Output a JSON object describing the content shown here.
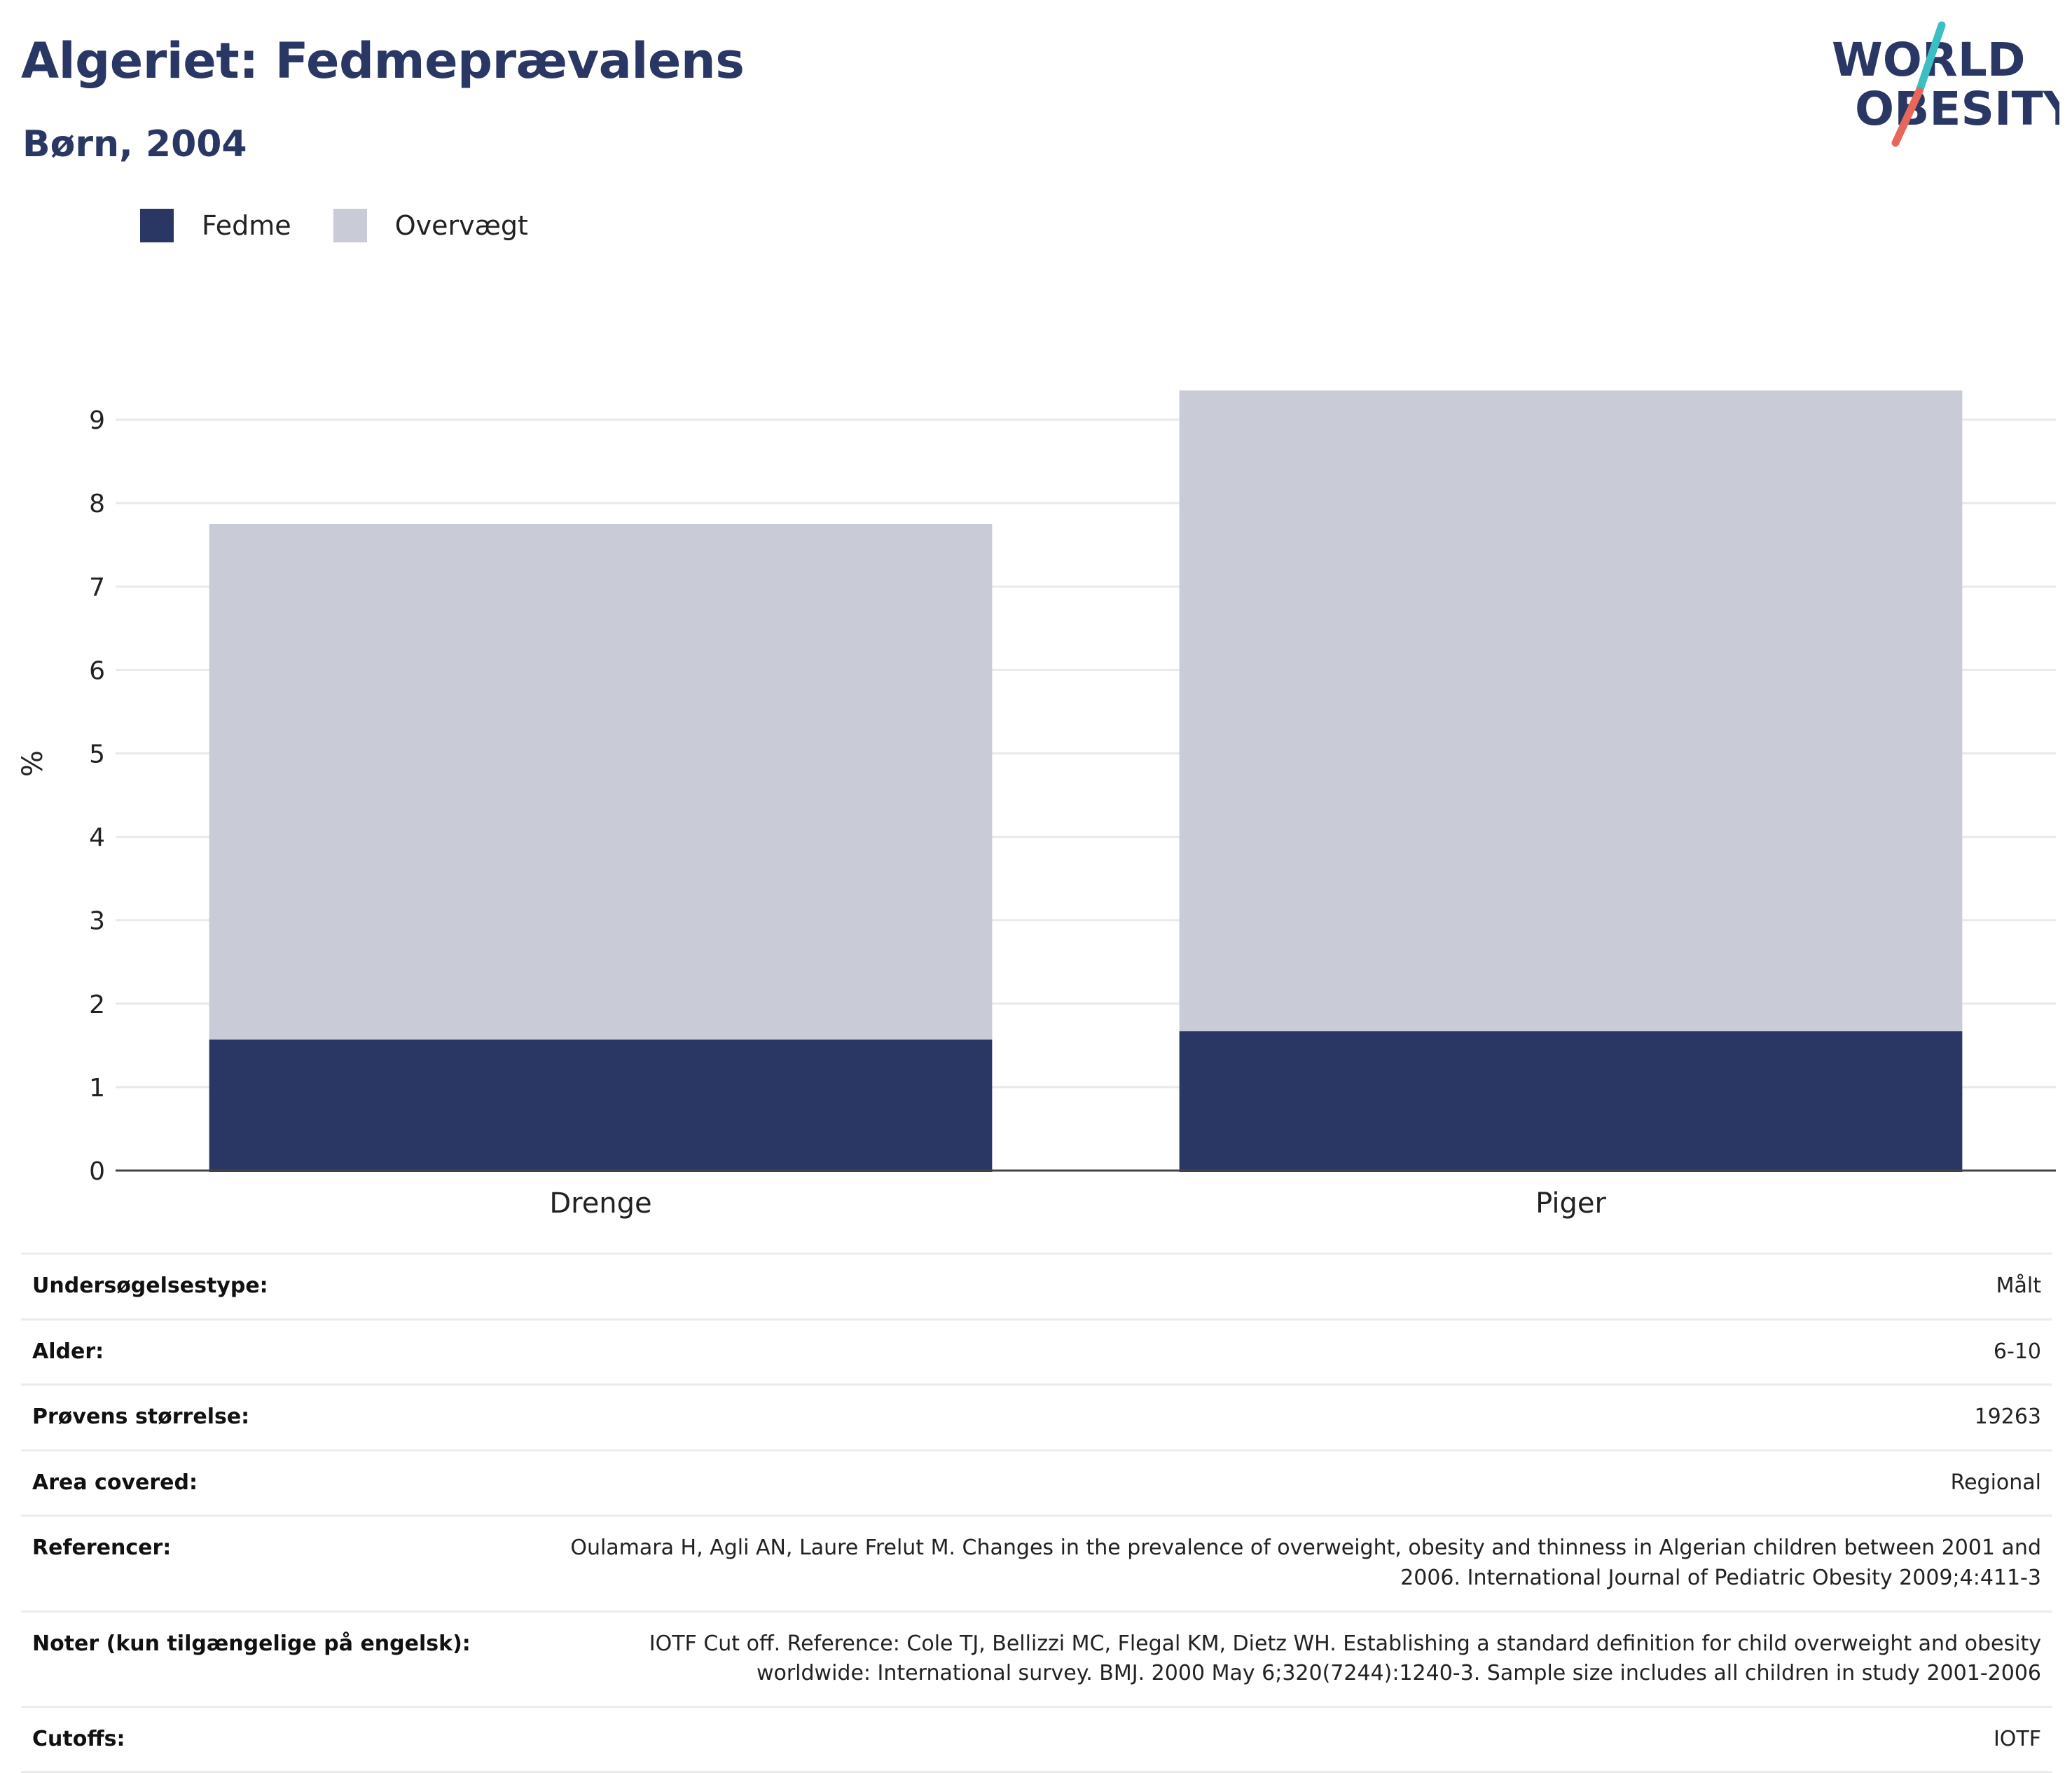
{
  "header": {
    "title": "Algeriet: Fedmeprævalens",
    "subtitle": "Børn, 2004"
  },
  "logo": {
    "line1": "WORLD",
    "line2": "OBESITY",
    "colors": {
      "text": "#2a3663",
      "slash_top": "#3bbfc2",
      "slash_bottom": "#e8675b"
    }
  },
  "colors": {
    "obesity": "#2a3663",
    "overweight": "#c9cbd6",
    "grid": "#e9e9e9",
    "axis": "#444444"
  },
  "legend": [
    {
      "label": "Fedme",
      "color": "#2a3663"
    },
    {
      "label": "Overvægt",
      "color": "#c9cbd6"
    }
  ],
  "chart_data": {
    "type": "bar",
    "stacked": true,
    "categories": [
      "Drenge",
      "Piger"
    ],
    "series": [
      {
        "name": "Fedme",
        "values": [
          1.57,
          1.67
        ]
      },
      {
        "name": "Overvægt",
        "values": [
          6.18,
          7.68
        ]
      }
    ],
    "title": "Algeriet: Fedmeprævalens",
    "subtitle": "Børn, 2004",
    "xlabel": "",
    "ylabel": "%",
    "ylim": [
      0,
      9.5
    ],
    "yticks": [
      0,
      1,
      2,
      3,
      4,
      5,
      6,
      7,
      8,
      9
    ],
    "grid": true,
    "legend_position": "top-left"
  },
  "meta": [
    {
      "label": "Undersøgelsestype:",
      "value": "Målt"
    },
    {
      "label": "Alder:",
      "value": "6-10"
    },
    {
      "label": "Prøvens størrelse:",
      "value": "19263"
    },
    {
      "label": "Area covered:",
      "value": "Regional"
    },
    {
      "label": "Referencer:",
      "value": "Oulamara H, Agli AN, Laure Frelut M. Changes in the prevalence of overweight, obesity and thinness in Algerian children between 2001 and 2006. International Journal of Pediatric Obesity 2009;4:411-3"
    },
    {
      "label": "Noter (kun tilgængelige på engelsk):",
      "value": "IOTF Cut off. Reference: Cole TJ, Bellizzi MC, Flegal KM, Dietz WH. Establishing a standard definition for child overweight and obesity worldwide: International survey. BMJ. 2000 May 6;320(7244):1240-3. Sample size includes all children in study 2001-2006"
    },
    {
      "label": "Cutoffs:",
      "value": "IOTF"
    }
  ]
}
